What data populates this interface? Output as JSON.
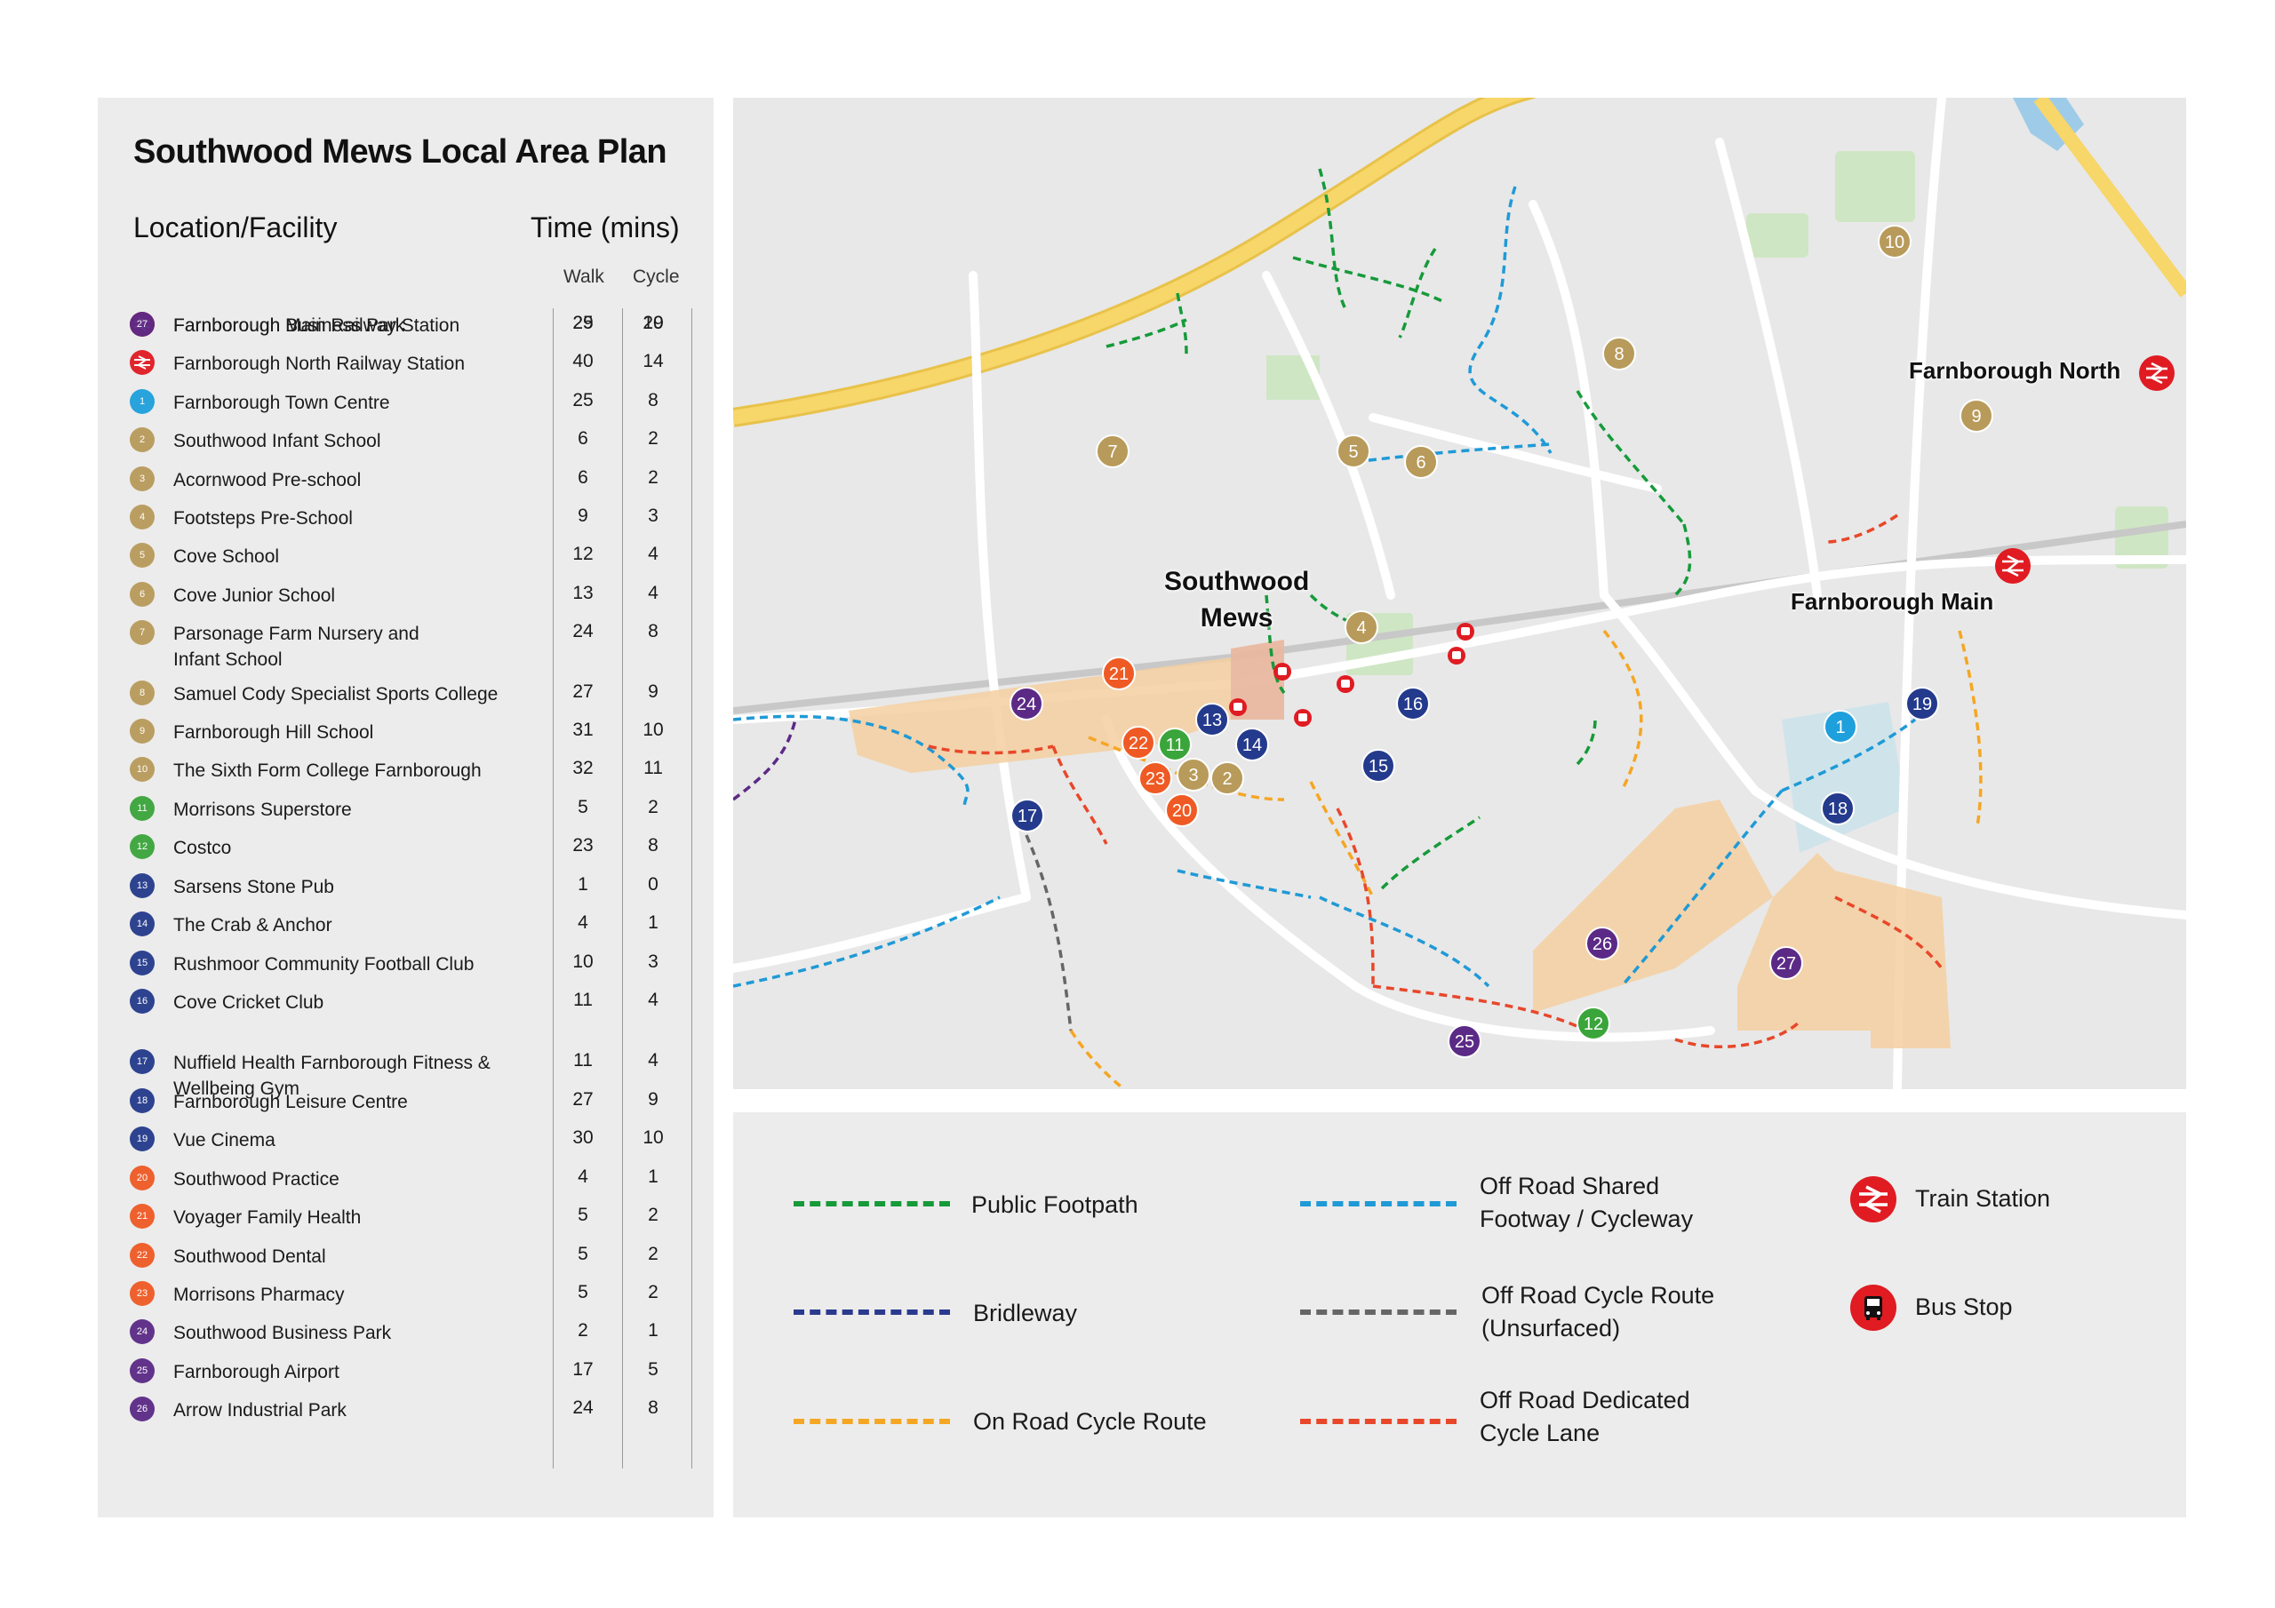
{
  "title": "Southwood Mews Local Area Plan",
  "table": {
    "col_location": "Location/Facility",
    "col_time": "Time (mins)",
    "col_walk": "Walk",
    "col_cycle": "Cycle",
    "rows": [
      {
        "id": "",
        "kind": "rail",
        "name": "Farnborough Main Railway Station",
        "walk": "25",
        "cycle": "29"
      },
      {
        "id": "",
        "kind": "rail",
        "name": "Farnborough North Railway Station",
        "walk": "40",
        "cycle": "14"
      },
      {
        "id": "1",
        "kind": "town",
        "name": "Farnborough Town Centre",
        "walk": "25",
        "cycle": "8"
      },
      {
        "id": "2",
        "kind": "edu",
        "name": "Southwood Infant School",
        "walk": "6",
        "cycle": "2"
      },
      {
        "id": "3",
        "kind": "edu",
        "name": "Acornwood Pre-school",
        "walk": "6",
        "cycle": "2"
      },
      {
        "id": "4",
        "kind": "edu",
        "name": "Footsteps Pre-School",
        "walk": "9",
        "cycle": "3"
      },
      {
        "id": "5",
        "kind": "edu",
        "name": "Cove School",
        "walk": "12",
        "cycle": "4"
      },
      {
        "id": "6",
        "kind": "edu",
        "name": "Cove Junior School",
        "walk": "13",
        "cycle": "4"
      },
      {
        "id": "7",
        "kind": "edu",
        "name": "Parsonage Farm Nursery and\nInfant School",
        "walk": "24",
        "cycle": "8"
      },
      {
        "id": "8",
        "kind": "edu",
        "name": "Samuel Cody Specialist Sports College",
        "walk": "27",
        "cycle": "9"
      },
      {
        "id": "9",
        "kind": "edu",
        "name": "Farnborough Hill School",
        "walk": "31",
        "cycle": "10"
      },
      {
        "id": "10",
        "kind": "edu",
        "name": "The Sixth Form College Farnborough",
        "walk": "32",
        "cycle": "11"
      },
      {
        "id": "11",
        "kind": "shop",
        "name": "Morrisons Superstore",
        "walk": "5",
        "cycle": "2"
      },
      {
        "id": "12",
        "kind": "shop",
        "name": "Costco",
        "walk": "23",
        "cycle": "8"
      },
      {
        "id": "13",
        "kind": "leisure",
        "name": "Sarsens Stone Pub",
        "walk": "1",
        "cycle": "0"
      },
      {
        "id": "14",
        "kind": "leisure",
        "name": "The Crab & Anchor",
        "walk": "4",
        "cycle": "1"
      },
      {
        "id": "15",
        "kind": "leisure",
        "name": "Rushmoor Community Football Club",
        "walk": "10",
        "cycle": "3"
      },
      {
        "id": "16",
        "kind": "leisure",
        "name": "Cove Cricket Club",
        "walk": "11",
        "cycle": "4"
      },
      {
        "id": "17",
        "kind": "leisure",
        "name": "Nuffield Health Farnborough Fitness &\nWellbeing Gym",
        "walk": "11",
        "cycle": "4"
      },
      {
        "id": "18",
        "kind": "leisure",
        "name": "Farnborough Leisure Centre",
        "walk": "27",
        "cycle": "9"
      },
      {
        "id": "19",
        "kind": "leisure",
        "name": "Vue Cinema",
        "walk": "30",
        "cycle": "10"
      },
      {
        "id": "20",
        "kind": "health",
        "name": "Southwood Practice",
        "walk": "4",
        "cycle": "1"
      },
      {
        "id": "21",
        "kind": "health",
        "name": "Voyager Family Health",
        "walk": "5",
        "cycle": "2"
      },
      {
        "id": "22",
        "kind": "health",
        "name": "Southwood Dental",
        "walk": "5",
        "cycle": "2"
      },
      {
        "id": "23",
        "kind": "health",
        "name": "Morrisons Pharmacy",
        "walk": "5",
        "cycle": "2"
      },
      {
        "id": "24",
        "kind": "business",
        "name": "Southwood Business Park",
        "walk": "2",
        "cycle": "1"
      },
      {
        "id": "25",
        "kind": "business",
        "name": "Farnborough Airport",
        "walk": "17",
        "cycle": "5"
      },
      {
        "id": "26",
        "kind": "business",
        "name": "Arrow Industrial Park",
        "walk": "24",
        "cycle": "8"
      },
      {
        "id": "27",
        "kind": "business",
        "name": "Farnborough Business Park",
        "walk": "29",
        "cycle": "10"
      }
    ]
  },
  "colors": {
    "rail": "#e01b22",
    "town": "#1ea0dc",
    "edu": "#b89a5a",
    "shop": "#3aa53a",
    "leisure": "#243a8c",
    "health": "#ef5a24",
    "business": "#5b2a86",
    "footpath": "#169a3a",
    "bridleway": "#2b3a8f",
    "on_road_cycle": "#f5a623",
    "shared_footway": "#1f9ad6",
    "unsurfaced": "#666666",
    "dedicated_lane": "#e8472a",
    "site": "#f5cfa0",
    "site_core": "#eab8a0",
    "road_major": "#f7d66a",
    "road": "#ffffff",
    "water": "#9ecbe8",
    "green": "#cfe6c4"
  },
  "map": {
    "place_labels": {
      "site": "Southwood\nMews",
      "farnborough_north": "Farnborough North",
      "farnborough_main": "Farnborough Main"
    },
    "markers": [
      {
        "id": "1",
        "kind": "town"
      },
      {
        "id": "2",
        "kind": "edu"
      },
      {
        "id": "3",
        "kind": "edu"
      },
      {
        "id": "4",
        "kind": "edu"
      },
      {
        "id": "5",
        "kind": "edu"
      },
      {
        "id": "6",
        "kind": "edu"
      },
      {
        "id": "7",
        "kind": "edu"
      },
      {
        "id": "8",
        "kind": "edu"
      },
      {
        "id": "9",
        "kind": "edu"
      },
      {
        "id": "10",
        "kind": "edu"
      },
      {
        "id": "11",
        "kind": "shop"
      },
      {
        "id": "12",
        "kind": "shop"
      },
      {
        "id": "13",
        "kind": "leisure"
      },
      {
        "id": "14",
        "kind": "leisure"
      },
      {
        "id": "15",
        "kind": "leisure"
      },
      {
        "id": "16",
        "kind": "leisure"
      },
      {
        "id": "17",
        "kind": "leisure"
      },
      {
        "id": "18",
        "kind": "leisure"
      },
      {
        "id": "19",
        "kind": "leisure"
      },
      {
        "id": "20",
        "kind": "health"
      },
      {
        "id": "21",
        "kind": "health"
      },
      {
        "id": "22",
        "kind": "health"
      },
      {
        "id": "23",
        "kind": "health"
      },
      {
        "id": "24",
        "kind": "business"
      },
      {
        "id": "25",
        "kind": "business"
      },
      {
        "id": "26",
        "kind": "business"
      },
      {
        "id": "27",
        "kind": "business"
      }
    ],
    "stations": [
      {
        "icon": "train-station-icon"
      },
      {
        "icon": "train-station-icon"
      }
    ],
    "bus_stops": 6
  },
  "legend": {
    "footpath": "Public Footpath",
    "bridleway": "Bridleway",
    "on_road_cycle": "On Road Cycle Route",
    "shared_footway": "Off Road Shared\nFootway / Cycleway",
    "unsurfaced": "Off Road Cycle Route\n(Unsurfaced)",
    "dedicated_lane": "Off Road Dedicated\nCycle Lane",
    "train_station": "Train Station",
    "bus_stop": "Bus Stop"
  }
}
